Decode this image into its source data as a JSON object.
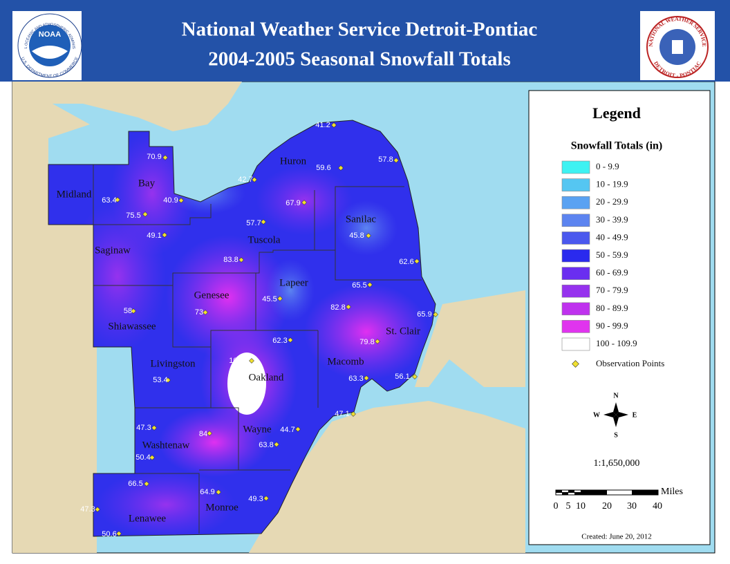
{
  "header": {
    "title_line1": "National Weather Service Detroit-Pontiac",
    "title_line2": "2004-2005 Seasonal Snowfall Totals",
    "noaa_logo": {
      "name": "NOAA",
      "ring_top": "NATIONAL OCEANIC AND ATMOSPHERIC ADMINISTRATION",
      "ring_bottom": "U.S. DEPARTMENT OF COMMERCE"
    },
    "nws_logo": {
      "top": "NATIONAL WEATHER SERVICE",
      "bottom": "DETROIT - PONTIAC"
    }
  },
  "map": {
    "counties": [
      "Midland",
      "Bay",
      "Huron",
      "Saginaw",
      "Tuscola",
      "Sanilac",
      "Genesee",
      "Lapeer",
      "Shiawassee",
      "St. Clair",
      "Livingston",
      "Oakland",
      "Macomb",
      "Washtenaw",
      "Wayne",
      "Monroe",
      "Lenawee"
    ],
    "observations": [
      41.2,
      42.7,
      70.9,
      59.6,
      57.8,
      63.4,
      40.9,
      67.9,
      75.5,
      57.7,
      45.8,
      49.1,
      83.8,
      62.6,
      65.5,
      45.5,
      58,
      82.8,
      73,
      65.9,
      62.3,
      79.8,
      101.4,
      53.4,
      63.3,
      56.1,
      47.1,
      47.3,
      84,
      44.7,
      63.8,
      50.4,
      66.5,
      64.9,
      49.3,
      47.3,
      50.6
    ]
  },
  "legend": {
    "title": "Legend",
    "subtitle": "Snowfall Totals (in)",
    "classes": [
      {
        "label": "0 - 9.9",
        "color": "#3ef2f2"
      },
      {
        "label": "10 - 19.9",
        "color": "#55c6f2"
      },
      {
        "label": "20 - 29.9",
        "color": "#5aa2f2"
      },
      {
        "label": "30 - 39.9",
        "color": "#5c84f0"
      },
      {
        "label": "40 - 49.9",
        "color": "#4a58ee"
      },
      {
        "label": "50 - 59.9",
        "color": "#2a2aee"
      },
      {
        "label": "60 - 69.9",
        "color": "#6a2ef0"
      },
      {
        "label": "70 - 79.9",
        "color": "#9632ee"
      },
      {
        "label": "80 - 89.9",
        "color": "#bf32ee"
      },
      {
        "label": "90 - 99.9",
        "color": "#e034ee"
      },
      {
        "label": "100 - 109.9",
        "color": "#ffffff"
      }
    ],
    "points_label": "Observation Points"
  },
  "compass": {
    "n": "N",
    "e": "E",
    "s": "S",
    "w": "W"
  },
  "scale": {
    "ratio": "1:1,650,000",
    "unit": "Miles",
    "ticks": [
      0,
      5,
      10,
      20,
      30,
      40
    ]
  },
  "footer": {
    "created": "Created: June 20, 2012"
  }
}
